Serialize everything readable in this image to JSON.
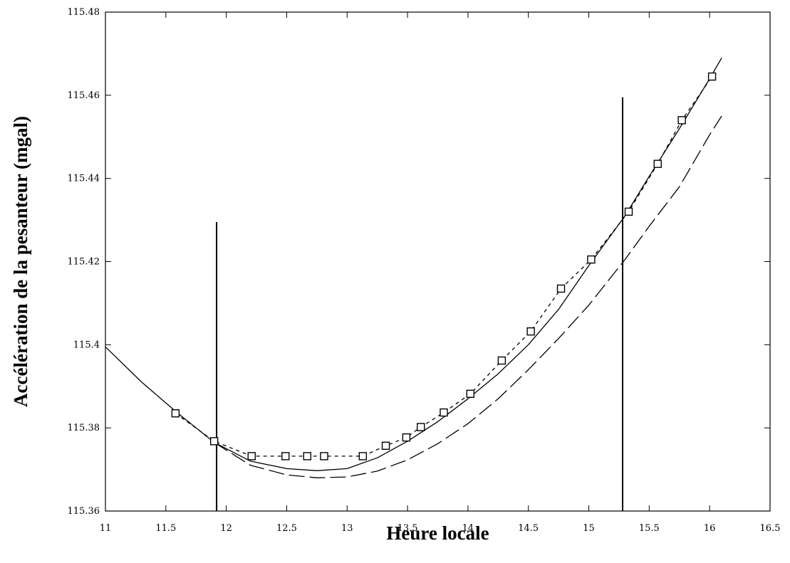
{
  "chart_data": {
    "type": "line",
    "title": "",
    "xlabel": "Heure locale",
    "ylabel": "Accélération de la pesanteur  (mgal)",
    "xlim": [
      11,
      16.5
    ],
    "ylim": [
      115.36,
      115.48
    ],
    "x_ticks": [
      11,
      11.5,
      12,
      12.5,
      13,
      13.5,
      14,
      14.5,
      15,
      15.5,
      16,
      16.5
    ],
    "x_tick_labels": [
      "11",
      "11.5",
      "12",
      "12.5",
      "13",
      "13.5",
      "14",
      "14.5",
      "15",
      "15.5",
      "16",
      "16.5"
    ],
    "y_ticks": [
      115.36,
      115.38,
      115.4,
      115.42,
      115.44,
      115.46,
      115.48
    ],
    "y_tick_labels": [
      "115.36",
      "115.38",
      "115.4",
      "115.42",
      "115.44",
      "115.46",
      "115.48"
    ],
    "grid": false,
    "legend": null,
    "series": [
      {
        "style": "solid",
        "x": [
          11.0,
          11.3,
          11.6,
          11.9,
          12.2,
          12.5,
          12.75,
          13.0,
          13.25,
          13.5,
          13.75,
          14.0,
          14.25,
          14.5,
          14.75,
          15.0,
          15.3,
          15.5,
          15.75,
          16.0,
          16.1
        ],
        "y": [
          115.3995,
          115.391,
          115.3835,
          115.3765,
          115.372,
          115.3702,
          115.3697,
          115.3702,
          115.3728,
          115.3768,
          115.3815,
          115.387,
          115.393,
          115.4,
          115.4085,
          115.419,
          115.431,
          115.4405,
          115.452,
          115.464,
          115.469
        ]
      },
      {
        "style": "long-dash",
        "x": [
          11.9,
          12.2,
          12.5,
          12.75,
          13.0,
          13.25,
          13.5,
          13.75,
          14.0,
          14.25,
          14.5,
          14.75,
          15.0,
          15.3,
          15.5,
          15.75,
          16.0,
          16.1
        ],
        "y": [
          115.3765,
          115.371,
          115.3687,
          115.368,
          115.3682,
          115.3696,
          115.3723,
          115.3762,
          115.381,
          115.387,
          115.394,
          115.4015,
          115.4095,
          115.4205,
          115.4285,
          115.438,
          115.4505,
          115.455
        ]
      },
      {
        "style": "short-dash-markers",
        "marker": "square",
        "x": [
          11.58,
          11.9,
          12.21,
          12.49,
          12.67,
          12.81,
          13.13,
          13.32,
          13.49,
          13.61,
          13.8,
          14.02,
          14.28,
          14.52,
          14.77,
          15.02,
          15.33,
          15.57,
          15.77,
          16.02
        ],
        "y": [
          115.3835,
          115.3768,
          115.3732,
          115.3732,
          115.3732,
          115.3732,
          115.3732,
          115.3757,
          115.3777,
          115.3802,
          115.3837,
          115.3882,
          115.3962,
          115.4032,
          115.4135,
          115.4205,
          115.432,
          115.4435,
          115.454,
          115.4645
        ]
      }
    ],
    "vertical_markers": [
      {
        "x": 11.92,
        "y_top": 115.4295
      },
      {
        "x": 15.28,
        "y_top": 115.4595
      }
    ]
  }
}
